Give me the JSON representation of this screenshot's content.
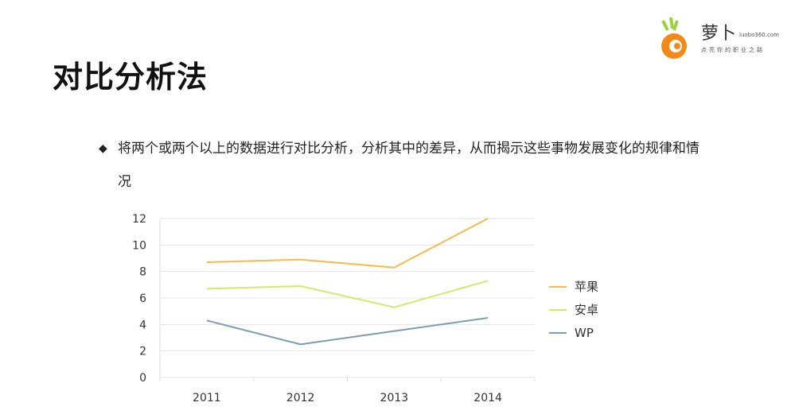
{
  "slide": {
    "title": "对比分析法",
    "bullet_icon": "diamond-bullet-icon",
    "bullet_text": "将两个或两个以上的数据进行对比分析，分析其中的差异，从而揭示这些事物发展变化的规律和情况"
  },
  "logo": {
    "name": "萝卜",
    "url": "luobo360.com",
    "slogan": "点亮你的职业之路"
  },
  "chart_data": {
    "type": "line",
    "title": "",
    "xlabel": "",
    "ylabel": "",
    "categories": [
      "2011",
      "2012",
      "2013",
      "2014"
    ],
    "ylim": [
      0,
      12
    ],
    "yticks": [
      "0",
      "2",
      "4",
      "6",
      "8",
      "10",
      "12"
    ],
    "grid": true,
    "legend_position": "right",
    "series": [
      {
        "name": "苹果",
        "color": "#F9B94A",
        "values": [
          8.7,
          8.9,
          8.3,
          12.1
        ]
      },
      {
        "name": "安卓",
        "color": "#D4E86A",
        "values": [
          6.7,
          6.9,
          5.3,
          7.3
        ]
      },
      {
        "name": "WP",
        "color": "#7A9DB5",
        "values": [
          4.3,
          2.5,
          3.5,
          4.5
        ]
      }
    ]
  }
}
